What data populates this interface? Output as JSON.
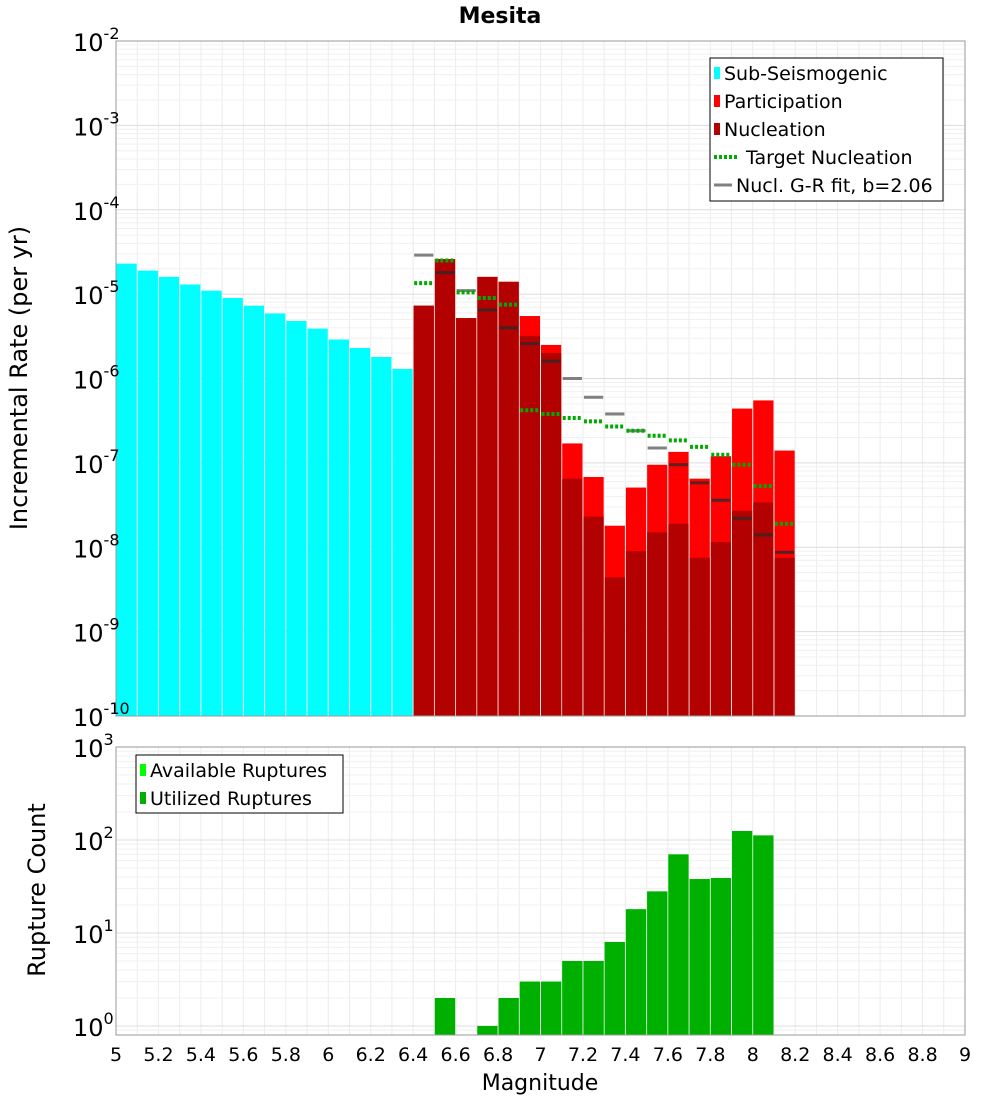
{
  "chart_data": [
    {
      "type": "bar",
      "title": "Mesita",
      "xlabel": "",
      "ylabel": "Incremental Rate (per yr)",
      "xlim": [
        5,
        9
      ],
      "ylim": [
        1e-10,
        0.01
      ],
      "yscale": "log",
      "grid": true,
      "legend_position": "top-right",
      "y_tick_labels": [
        {
          "base": "10",
          "exp": "-10"
        },
        {
          "base": "10",
          "exp": "-9"
        },
        {
          "base": "10",
          "exp": "-8"
        },
        {
          "base": "10",
          "exp": "-7"
        },
        {
          "base": "10",
          "exp": "-6"
        },
        {
          "base": "10",
          "exp": "-5"
        },
        {
          "base": "10",
          "exp": "-4"
        },
        {
          "base": "10",
          "exp": "-3"
        },
        {
          "base": "10",
          "exp": "-2"
        }
      ],
      "colors": {
        "sub": "#00ffff",
        "participation": "#ff0000",
        "nucleation": "#b30000",
        "target": "#00aa00",
        "fit": "#808080"
      },
      "legend": [
        {
          "label": "Sub-Seismogenic",
          "kind": "bar",
          "color": "#00ffff"
        },
        {
          "label": "Participation",
          "kind": "bar",
          "color": "#ff0000"
        },
        {
          "label": "Nucleation",
          "kind": "bar",
          "color": "#b30000"
        },
        {
          "label": "Target Nucleation",
          "kind": "dotted",
          "color": "#00aa00"
        },
        {
          "label": "Nucl. G-R fit, b=2.06",
          "kind": "line",
          "color": "#808080"
        }
      ],
      "series": [
        {
          "name": "Sub-Seismogenic",
          "x": [
            5.05,
            5.15,
            5.25,
            5.35,
            5.45,
            5.55,
            5.65,
            5.75,
            5.85,
            5.95,
            6.05,
            6.15,
            6.25,
            6.35
          ],
          "values": [
            2.3e-05,
            1.9e-05,
            1.6e-05,
            1.3e-05,
            1.1e-05,
            9e-06,
            7.3e-06,
            5.9e-06,
            4.8e-06,
            3.9e-06,
            2.9e-06,
            2.3e-06,
            1.8e-06,
            1.3e-06
          ]
        },
        {
          "name": "Participation",
          "x": [
            6.45,
            6.55,
            6.65,
            6.75,
            6.85,
            6.95,
            7.05,
            7.15,
            7.25,
            7.35,
            7.45,
            7.55,
            7.65,
            7.75,
            7.85,
            7.95,
            8.05,
            8.15
          ],
          "values": [
            7.3e-06,
            2.6e-05,
            5.2e-06,
            1.6e-05,
            1.4e-05,
            5.5e-06,
            2.5e-06,
            1.7e-07,
            6.8e-08,
            1.8e-08,
            5.1e-08,
            9.5e-08,
            1.35e-07,
            6.5e-08,
            1.2e-07,
            4.4e-07,
            5.5e-07,
            1.4e-07
          ]
        },
        {
          "name": "Nucleation",
          "x": [
            6.45,
            6.55,
            6.65,
            6.75,
            6.85,
            6.95,
            7.05,
            7.15,
            7.25,
            7.35,
            7.45,
            7.55,
            7.65,
            7.75,
            7.85,
            7.95,
            8.05,
            8.15
          ],
          "values": [
            7.3e-06,
            2.6e-05,
            5.2e-06,
            1.6e-05,
            1.4e-05,
            3.2e-06,
            2e-06,
            6.5e-08,
            2.3e-08,
            4.4e-09,
            9e-09,
            1.5e-08,
            1.9e-08,
            7.5e-09,
            1.15e-08,
            2.7e-08,
            3.4e-08,
            7.5e-09
          ]
        },
        {
          "name": "Target Nucleation",
          "x": [
            6.45,
            6.55,
            6.65,
            6.75,
            6.85,
            6.95,
            7.05,
            7.15,
            7.25,
            7.35,
            7.45,
            7.55,
            7.65,
            7.75,
            7.85,
            7.95,
            8.05,
            8.15
          ],
          "values": [
            1.35e-05,
            2.5e-05,
            1.05e-05,
            9e-06,
            7.5e-06,
            4.2e-07,
            3.8e-07,
            3.4e-07,
            3.1e-07,
            2.7e-07,
            2.4e-07,
            2.1e-07,
            1.85e-07,
            1.55e-07,
            1.25e-07,
            9.5e-08,
            5.3e-08,
            1.9e-08
          ]
        },
        {
          "name": "Nucl. G-R fit, b=2.06",
          "x": [
            6.45,
            6.55,
            6.65,
            6.75,
            6.85,
            6.95,
            7.05,
            7.15,
            7.25,
            7.35,
            7.45,
            7.55,
            7.65,
            7.75,
            7.85,
            7.95,
            8.05,
            8.15
          ],
          "values": [
            2.9e-05,
            1.8e-05,
            1.1e-05,
            6.5e-06,
            4e-06,
            2.6e-06,
            1.6e-06,
            1e-06,
            6e-07,
            3.8e-07,
            2.4e-07,
            1.5e-07,
            9.5e-08,
            5.8e-08,
            3.6e-08,
            2.2e-08,
            1.4e-08,
            8.7e-09
          ]
        }
      ]
    },
    {
      "type": "bar",
      "title": "",
      "xlabel": "Magnitude",
      "ylabel": "Rupture Count",
      "xlim": [
        5,
        9
      ],
      "ylim": [
        0.8,
        1000
      ],
      "yscale": "log",
      "grid": true,
      "legend_position": "top-left",
      "x_tick_labels": [
        "5",
        "5.2",
        "5.4",
        "5.6",
        "5.8",
        "6",
        "6.2",
        "6.4",
        "6.6",
        "6.8",
        "7",
        "7.2",
        "7.4",
        "7.6",
        "7.8",
        "8",
        "8.2",
        "8.4",
        "8.6",
        "8.8",
        "9"
      ],
      "y_tick_labels": [
        {
          "base": "10",
          "exp": "0"
        },
        {
          "base": "10",
          "exp": "1"
        },
        {
          "base": "10",
          "exp": "2"
        },
        {
          "base": "10",
          "exp": "3"
        }
      ],
      "colors": {
        "available": "#00ff00",
        "utilized": "#00b000"
      },
      "legend": [
        {
          "label": "Available Ruptures",
          "kind": "bar",
          "color": "#00ff00"
        },
        {
          "label": "Utilized Ruptures",
          "kind": "bar",
          "color": "#00b000"
        }
      ],
      "series": [
        {
          "name": "Available Ruptures",
          "x": [
            6.55,
            6.75,
            6.85,
            6.95,
            7.05,
            7.15,
            7.25,
            7.35,
            7.45,
            7.55,
            7.65,
            7.75,
            7.85,
            7.95,
            8.05
          ],
          "values": [
            2,
            1,
            2,
            3,
            3,
            5,
            5,
            8,
            18,
            28,
            70,
            38,
            39,
            125,
            112
          ]
        },
        {
          "name": "Utilized Ruptures",
          "x": [
            6.55,
            6.75,
            6.85,
            6.95,
            7.05,
            7.15,
            7.25,
            7.35,
            7.45,
            7.55,
            7.65,
            7.75,
            7.85,
            7.95,
            8.05
          ],
          "values": [
            2,
            1,
            2,
            3,
            3,
            5,
            5,
            8,
            18,
            28,
            70,
            38,
            39,
            125,
            112
          ]
        }
      ]
    }
  ]
}
